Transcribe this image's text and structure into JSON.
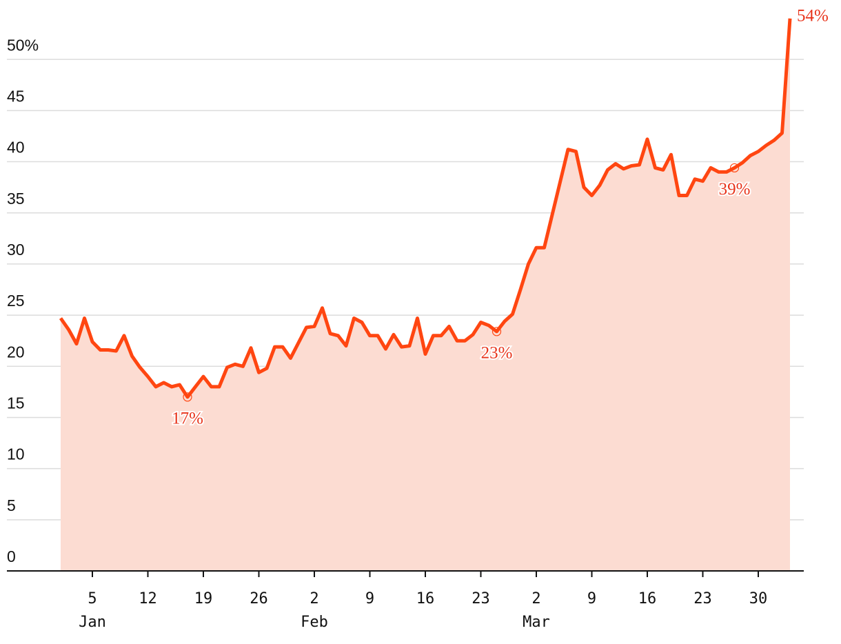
{
  "chart_data": {
    "type": "line",
    "x": [
      "Jan 1",
      "Jan 2",
      "Jan 3",
      "Jan 4",
      "Jan 5",
      "Jan 6",
      "Jan 7",
      "Jan 8",
      "Jan 9",
      "Jan 10",
      "Jan 11",
      "Jan 12",
      "Jan 13",
      "Jan 14",
      "Jan 15",
      "Jan 16",
      "Jan 17",
      "Jan 18",
      "Jan 19",
      "Jan 20",
      "Jan 21",
      "Jan 22",
      "Jan 23",
      "Jan 24",
      "Jan 25",
      "Jan 26",
      "Jan 27",
      "Jan 28",
      "Jan 29",
      "Jan 30",
      "Jan 31",
      "Feb 1",
      "Feb 2",
      "Feb 3",
      "Feb 4",
      "Feb 5",
      "Feb 6",
      "Feb 7",
      "Feb 8",
      "Feb 9",
      "Feb 10",
      "Feb 11",
      "Feb 12",
      "Feb 13",
      "Feb 14",
      "Feb 15",
      "Feb 16",
      "Feb 17",
      "Feb 18",
      "Feb 19",
      "Feb 20",
      "Feb 21",
      "Feb 22",
      "Feb 23",
      "Feb 24",
      "Feb 25",
      "Feb 26",
      "Feb 27",
      "Feb 28",
      "Mar 1",
      "Mar 2",
      "Mar 3",
      "Mar 4",
      "Mar 5",
      "Mar 6",
      "Mar 7",
      "Mar 8",
      "Mar 9",
      "Mar 10",
      "Mar 11",
      "Mar 12",
      "Mar 13",
      "Mar 14",
      "Mar 15",
      "Mar 16",
      "Mar 17",
      "Mar 18",
      "Mar 19",
      "Mar 20",
      "Mar 21",
      "Mar 22",
      "Mar 23",
      "Mar 24",
      "Mar 25",
      "Mar 26",
      "Mar 27",
      "Mar 28",
      "Mar 29",
      "Mar 30",
      "Mar 31",
      "Apr 1",
      "Apr 2",
      "Apr 3"
    ],
    "values": [
      24.7,
      23.6,
      22.2,
      24.7,
      22.4,
      21.6,
      21.6,
      21.5,
      23.0,
      21.0,
      19.9,
      19.0,
      18.0,
      18.4,
      18.0,
      18.2,
      17.0,
      18.0,
      19.0,
      18.0,
      18.0,
      19.9,
      20.2,
      20.0,
      21.8,
      19.4,
      19.8,
      21.9,
      21.9,
      20.8,
      22.3,
      23.8,
      23.9,
      25.7,
      23.2,
      23.0,
      22.0,
      24.7,
      24.3,
      23.0,
      23.0,
      21.7,
      23.1,
      21.9,
      22.0,
      24.7,
      21.2,
      23.0,
      23.0,
      23.9,
      22.5,
      22.5,
      23.1,
      24.3,
      24.0,
      23.4,
      24.4,
      25.1,
      27.5,
      30.0,
      31.6,
      31.6,
      34.8,
      38.0,
      41.2,
      41.0,
      37.5,
      36.7,
      37.7,
      39.2,
      39.8,
      39.3,
      39.6,
      39.7,
      42.2,
      39.4,
      39.2,
      40.7,
      36.7,
      36.7,
      38.3,
      38.1,
      39.4,
      39.0,
      39.0,
      39.4,
      39.9,
      40.6,
      41.0,
      41.6,
      42.1,
      42.8,
      54
    ],
    "value_labels": [
      null,
      null,
      null,
      null,
      null,
      null,
      null,
      null,
      null,
      null,
      null,
      null,
      null,
      null,
      null,
      null,
      "17%",
      null,
      null,
      null,
      null,
      null,
      null,
      null,
      null,
      null,
      null,
      null,
      null,
      null,
      null,
      null,
      null,
      null,
      null,
      null,
      null,
      null,
      null,
      null,
      null,
      null,
      null,
      null,
      null,
      null,
      null,
      null,
      null,
      null,
      null,
      null,
      null,
      null,
      null,
      "23%",
      null,
      null,
      null,
      null,
      null,
      null,
      null,
      null,
      null,
      null,
      null,
      null,
      null,
      null,
      null,
      null,
      null,
      null,
      null,
      null,
      null,
      null,
      null,
      null,
      null,
      null,
      null,
      null,
      null,
      "39%",
      null,
      null,
      null,
      null,
      null,
      null,
      "54%"
    ],
    "color": "#ff4611",
    "fill_color": "#fcdcd2",
    "ylim": [
      0,
      55
    ],
    "yticks": [
      0,
      5,
      10,
      15,
      20,
      25,
      30,
      35,
      40,
      45,
      {
        "value": 50,
        "label": "50%"
      }
    ],
    "xticks": [
      {
        "value": "Jan 5",
        "label": "5"
      },
      {
        "value": "Jan 12",
        "label": "12"
      },
      {
        "value": "Jan 19",
        "label": "19"
      },
      {
        "value": "Jan 26",
        "label": "26"
      },
      {
        "value": "Feb 2",
        "label": "2"
      },
      {
        "value": "Feb 9",
        "label": "9"
      },
      {
        "value": "Feb 16",
        "label": "16"
      },
      {
        "value": "Feb 23",
        "label": "23"
      },
      {
        "value": "Mar 2",
        "label": "2"
      },
      {
        "value": "Mar 9",
        "label": "9"
      },
      {
        "value": "Mar 16",
        "label": "16"
      },
      {
        "value": "Mar 23",
        "label": "23"
      },
      {
        "value": "Mar 30",
        "label": "30"
      }
    ],
    "xtick_months": [
      "Jan",
      null,
      null,
      null,
      "Feb",
      null,
      null,
      null,
      "Mar",
      null,
      null,
      null,
      null
    ],
    "grid": true
  }
}
